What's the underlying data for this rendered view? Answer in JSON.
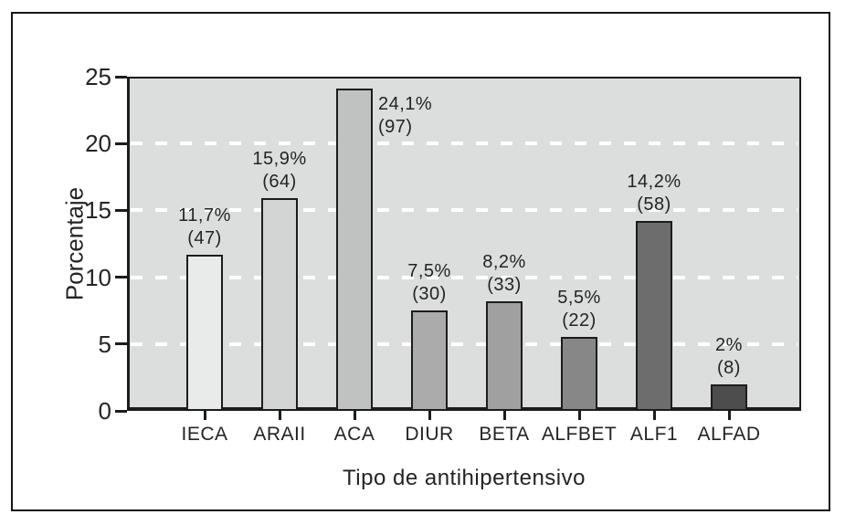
{
  "chart_data": {
    "type": "bar",
    "title": "",
    "xlabel": "Tipo de antihipertensivo",
    "ylabel": "Porcentaje",
    "ylim": [
      0,
      25
    ],
    "yticks": [
      0,
      5,
      10,
      15,
      20,
      25
    ],
    "gridlines": [
      5,
      10,
      15,
      20
    ],
    "grid_on": true,
    "grid_color": "#ffffff",
    "plot_bg_color": "#dcdddd",
    "axis_color": "#1c1c1c",
    "legend_position": "none",
    "categories": [
      "IECA",
      "ARAII",
      "ACA",
      "DIUR",
      "BETA",
      "ALFBET",
      "ALF1",
      "ALFAD"
    ],
    "values": [
      11.7,
      15.9,
      24.1,
      7.5,
      8.2,
      5.5,
      14.2,
      2
    ],
    "bars": [
      {
        "category": "IECA",
        "value": 11.7,
        "pct_label": "11,7%",
        "count_label": "(47)",
        "color": "#e9eaea",
        "label_position": "above"
      },
      {
        "category": "ARAII",
        "value": 15.9,
        "pct_label": "15,9%",
        "count_label": "(64)",
        "color": "#d3d4d4",
        "label_position": "above"
      },
      {
        "category": "ACA",
        "value": 24.1,
        "pct_label": "24,1%",
        "count_label": "(97)",
        "color": "#c0c1c1",
        "label_position": "right"
      },
      {
        "category": "DIUR",
        "value": 7.5,
        "pct_label": "7,5%",
        "count_label": "(30)",
        "color": "#ababab",
        "label_position": "above"
      },
      {
        "category": "BETA",
        "value": 8.2,
        "pct_label": "8,2%",
        "count_label": "(33)",
        "color": "#a0a0a0",
        "label_position": "above"
      },
      {
        "category": "ALFBET",
        "value": 5.5,
        "pct_label": "5,5%",
        "count_label": "(22)",
        "color": "#878787",
        "label_position": "above"
      },
      {
        "category": "ALF1",
        "value": 14.2,
        "pct_label": "14,2%",
        "count_label": "(58)",
        "color": "#6d6d6d",
        "label_position": "above"
      },
      {
        "category": "ALFAD",
        "value": 2,
        "pct_label": "2%",
        "count_label": "(8)",
        "color": "#4d4d4d",
        "label_position": "above"
      }
    ]
  }
}
